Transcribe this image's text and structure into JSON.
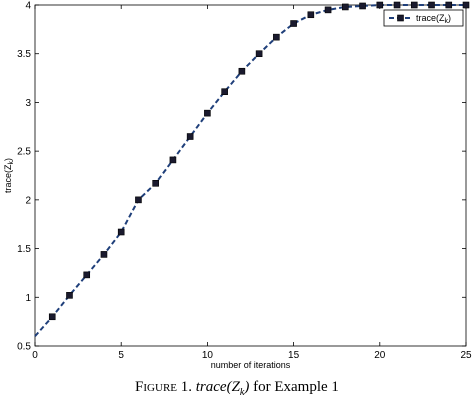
{
  "chart_data": {
    "type": "line",
    "xlabel": "number of iterations",
    "ylabel": "trace(Z_k)",
    "xlim": [
      0,
      25
    ],
    "ylim": [
      0.5,
      4
    ],
    "xticks": [
      0,
      5,
      10,
      15,
      20,
      25
    ],
    "yticks": [
      0.5,
      1,
      1.5,
      2,
      2.5,
      3,
      3.5,
      4
    ],
    "xtick_labels": [
      "0",
      "5",
      "10",
      "15",
      "20",
      "25"
    ],
    "ytick_labels": [
      "0.5",
      "1",
      "1.5",
      "2",
      "2.5",
      "3",
      "3.5",
      "4"
    ],
    "grid": false,
    "legend_position": "top-right",
    "line_color": "#1f3f7a",
    "marker_color": "#1a1a2e",
    "series": [
      {
        "name": "trace(Z_k)",
        "x": [
          0,
          1,
          2,
          3,
          4,
          5,
          6,
          7,
          8,
          9,
          10,
          11,
          12,
          13,
          14,
          15,
          16,
          17,
          18,
          19,
          20,
          21,
          22,
          23,
          24,
          25
        ],
        "y": [
          0.6,
          0.8,
          1.02,
          1.23,
          1.44,
          1.67,
          2.0,
          2.17,
          2.41,
          2.65,
          2.89,
          3.11,
          3.32,
          3.5,
          3.67,
          3.81,
          3.9,
          3.95,
          3.98,
          3.99,
          4.0,
          4.0,
          4.0,
          4.0,
          4.0,
          4.0
        ]
      }
    ]
  },
  "caption": {
    "figure_label": "Figure 1.",
    "expression": "trace(Z",
    "expression_sub": "k",
    "expression_close": ")",
    "suffix": " for Example 1"
  }
}
